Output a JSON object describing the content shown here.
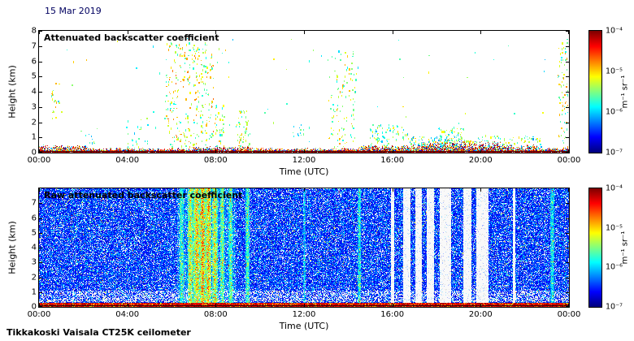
{
  "page": {
    "date": "15 Mar 2019",
    "caption": "Tikkakoski Vaisala CT25K ceilometer",
    "background": "#ffffff",
    "date_color": "#000060"
  },
  "chart_data": [
    {
      "type": "heatmap",
      "title": "Attenuated backscatter coefficient",
      "xlabel": "Time (UTC)",
      "ylabel": "Height (km)",
      "x_ticks": [
        "00:00",
        "04:00",
        "08:00",
        "12:00",
        "16:00",
        "20:00",
        "00:00"
      ],
      "y_ticks": [
        0,
        1,
        2,
        3,
        4,
        5,
        6,
        7,
        8
      ],
      "ylim": [
        0,
        8
      ],
      "xlim_hours": [
        0,
        24
      ],
      "grid": false,
      "colormap": "jet",
      "background": "#ffffff",
      "colorbar": {
        "label": "m⁻¹ sr⁻¹",
        "scale": "log",
        "ticks": [
          "10⁻⁴",
          "10⁻⁵",
          "10⁻⁶",
          "10⁻⁷"
        ],
        "range_exponents": [
          -4,
          -7
        ],
        "position": "right"
      },
      "features": {
        "surface": {
          "base_km": 0.18,
          "noise_km": 0.14,
          "bumps": [
            {
              "x": [
                0.0,
                0.09
              ],
              "h": 0.25
            },
            {
              "x": [
                0.29,
                0.4
              ],
              "h": 0.15
            },
            {
              "x": [
                0.6,
                0.72
              ],
              "h": 0.25
            },
            {
              "x": [
                0.72,
                0.87
              ],
              "h": 0.5
            },
            {
              "x": [
                0.87,
                0.94
              ],
              "h": 0.25
            }
          ]
        },
        "speck_clusters": [
          {
            "x": [
              0.022,
              0.038
            ],
            "y_km": [
              2.3,
              4.6
            ],
            "n": 18,
            "v": [
              0.45,
              0.72
            ]
          },
          {
            "x": [
              0.085,
              0.105
            ],
            "y_km": [
              0.3,
              1.3
            ],
            "n": 10,
            "v": [
              0.3,
              0.55
            ]
          },
          {
            "x": [
              0.165,
              0.205
            ],
            "y_km": [
              0.3,
              2.3
            ],
            "n": 26,
            "v": [
              0.3,
              0.6
            ]
          },
          {
            "x": [
              0.24,
              0.33
            ],
            "y_km": [
              0.3,
              7.3
            ],
            "n": 300,
            "v": [
              0.38,
              0.78
            ]
          },
          {
            "x": [
              0.332,
              0.35
            ],
            "y_km": [
              0.3,
              3.2
            ],
            "n": 40,
            "v": [
              0.35,
              0.7
            ]
          },
          {
            "x": [
              0.372,
              0.398
            ],
            "y_km": [
              0.3,
              2.8
            ],
            "n": 50,
            "v": [
              0.38,
              0.7
            ]
          },
          {
            "x": [
              0.478,
              0.502
            ],
            "y_km": [
              1.1,
              1.9
            ],
            "n": 12,
            "v": [
              0.3,
              0.5
            ]
          },
          {
            "x": [
              0.545,
              0.6
            ],
            "y_km": [
              0.4,
              6.8
            ],
            "n": 110,
            "v": [
              0.38,
              0.72
            ]
          },
          {
            "x": [
              0.625,
              0.7
            ],
            "y_km": [
              0.2,
              1.9
            ],
            "n": 90,
            "v": [
              0.3,
              0.65
            ]
          },
          {
            "x": [
              0.7,
              0.95
            ],
            "y_km": [
              0.1,
              1.1
            ],
            "n": 240,
            "v": [
              0.25,
              0.7
            ]
          },
          {
            "x": [
              0.755,
              0.805
            ],
            "y_km": [
              0.2,
              1.7
            ],
            "n": 70,
            "v": [
              0.3,
              0.65
            ]
          },
          {
            "x": [
              0.982,
              1.0
            ],
            "y_km": [
              0.2,
              7.5
            ],
            "n": 80,
            "v": [
              0.35,
              0.75
            ]
          },
          {
            "x": [
              0.0,
              1.0
            ],
            "y_km": [
              0.3,
              7.6
            ],
            "n": 70,
            "v": [
              0.3,
              0.7
            ]
          }
        ]
      }
    },
    {
      "type": "heatmap",
      "title": "Raw attenuated backscatter coefficient",
      "xlabel": "Time (UTC)",
      "ylabel": "Height (km)",
      "x_ticks": [
        "00:00",
        "04:00",
        "08:00",
        "12:00",
        "16:00",
        "20:00",
        "00:00"
      ],
      "y_ticks": [
        0,
        1,
        2,
        3,
        4,
        5,
        6,
        7
      ],
      "ylim": [
        0,
        8
      ],
      "xlim_hours": [
        0,
        24
      ],
      "grid": false,
      "colormap": "jet",
      "background": "#2a44cc",
      "colorbar": {
        "label": "m⁻¹ sr⁻¹",
        "scale": "log",
        "ticks": [
          "10⁻⁴",
          "10⁻⁵",
          "10⁻⁶",
          "10⁻⁷"
        ],
        "range_exponents": [
          -4,
          -7
        ],
        "position": "right"
      },
      "features": {
        "surface_km": 0.32,
        "light_fraction": 0.16,
        "gray_band_km": [
          0.35,
          1.1
        ],
        "green_zone": {
          "x": [
            0.26,
            0.37
          ],
          "s": 0.1
        },
        "streaks": [
          {
            "x": 0.268,
            "w": 0.004,
            "s": 0.25
          },
          {
            "x": 0.285,
            "w": 0.005,
            "s": 0.45
          },
          {
            "x": 0.297,
            "w": 0.006,
            "s": 0.55
          },
          {
            "x": 0.308,
            "w": 0.005,
            "s": 0.62
          },
          {
            "x": 0.319,
            "w": 0.006,
            "s": 0.55
          },
          {
            "x": 0.331,
            "w": 0.005,
            "s": 0.48
          },
          {
            "x": 0.345,
            "w": 0.004,
            "s": 0.35
          },
          {
            "x": 0.361,
            "w": 0.004,
            "s": 0.3
          },
          {
            "x": 0.393,
            "w": 0.004,
            "s": 0.38
          },
          {
            "x": 0.5,
            "w": 0.002,
            "s": 0.22
          },
          {
            "x": 0.604,
            "w": 0.003,
            "s": 0.32
          },
          {
            "x": 0.968,
            "w": 0.004,
            "s": 0.28
          }
        ],
        "gaps": [
          [
            0.663,
            0.669
          ],
          [
            0.686,
            0.7
          ],
          [
            0.71,
            0.721
          ],
          [
            0.731,
            0.745
          ],
          [
            0.755,
            0.777
          ],
          [
            0.8,
            0.815
          ],
          [
            0.824,
            0.848
          ],
          [
            0.893,
            0.898
          ]
        ]
      }
    }
  ]
}
